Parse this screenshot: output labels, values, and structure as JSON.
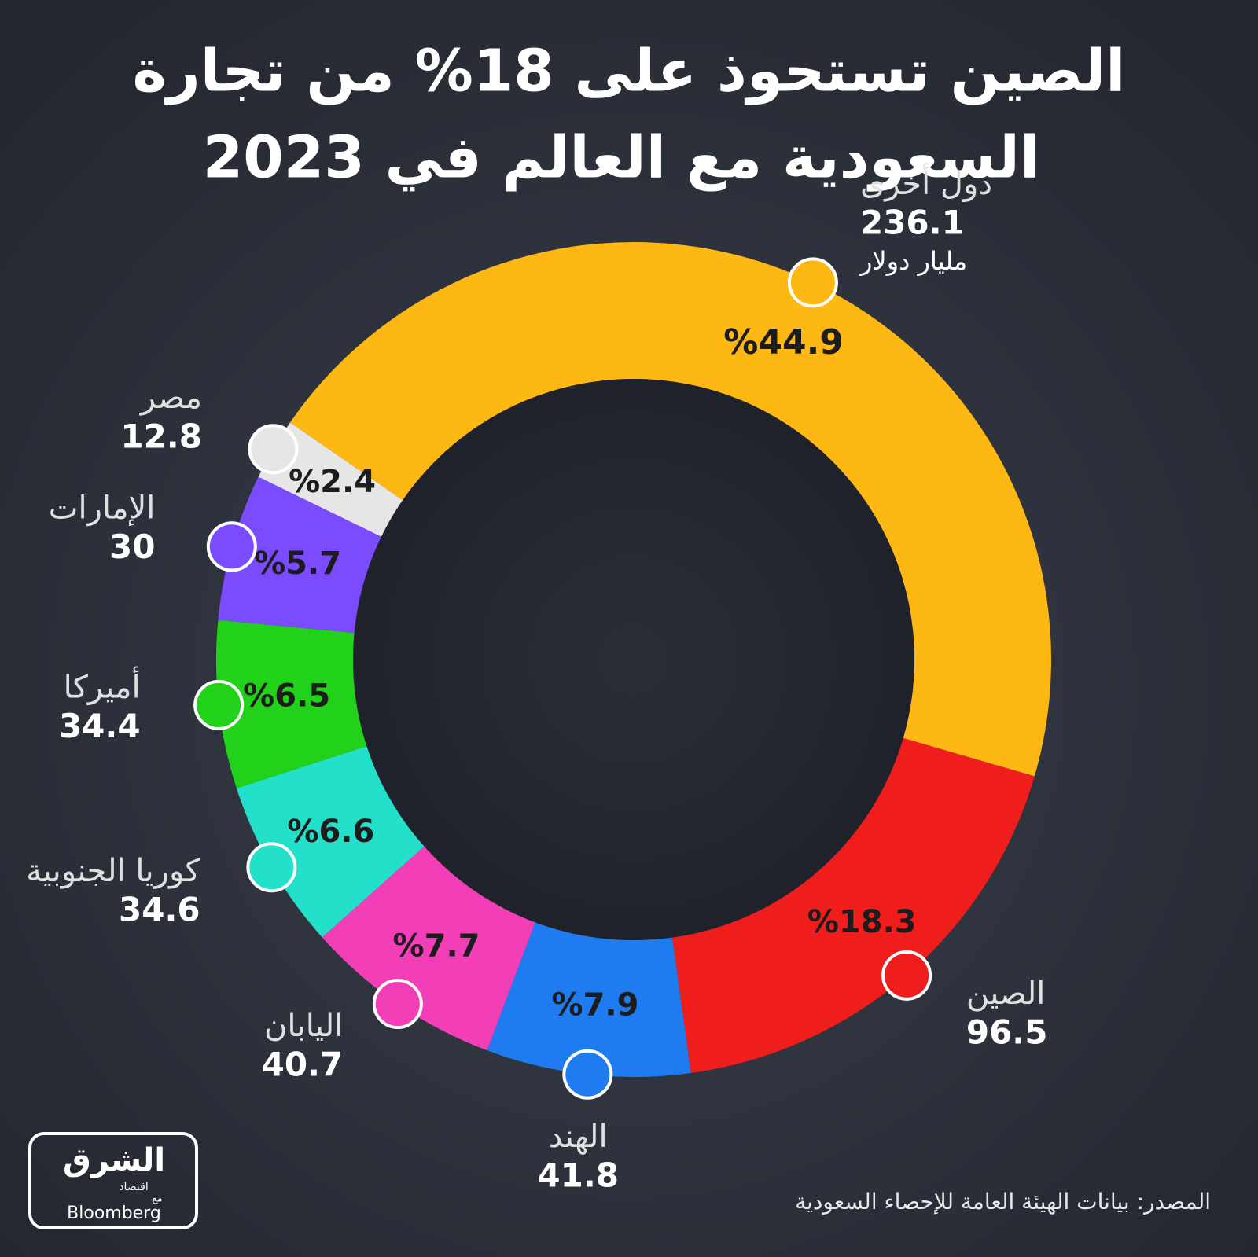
{
  "chart_data": {
    "type": "donut",
    "title": [
      "الصين تستحوذ على 18% من تجارة",
      "السعودية مع العالم في 2023"
    ],
    "categories": [
      "دول أخرى",
      "الصين",
      "الهند",
      "اليابان",
      "كوريا الجنوبية",
      "أميركا",
      "الإمارات",
      "مصر"
    ],
    "values": [
      44.9,
      18.3,
      7.9,
      7.7,
      6.6,
      6.5,
      5.7,
      2.4
    ],
    "value_labels": [
      "%44.9",
      "%18.3",
      "%7.9",
      "%7.7",
      "%6.6",
      "%6.5",
      "%5.7",
      "%2.4"
    ],
    "amounts": [
      236.1,
      96.5,
      41.8,
      40.7,
      34.6,
      34.4,
      30,
      12.8
    ],
    "unit": "مليار دولار",
    "colors": [
      "#fdb813",
      "#f01d1d",
      "#1f7cf0",
      "#f23fb8",
      "#22e0c9",
      "#22d11a",
      "#7b4cff",
      "#e6e6e6"
    ],
    "source": "المصدر: بيانات الهيئة العامة للإحصاء السعودية",
    "logo": {
      "name": "الشرق",
      "sub": "اقتصاد",
      "with": "مع",
      "partner": "Bloomberg"
    }
  }
}
